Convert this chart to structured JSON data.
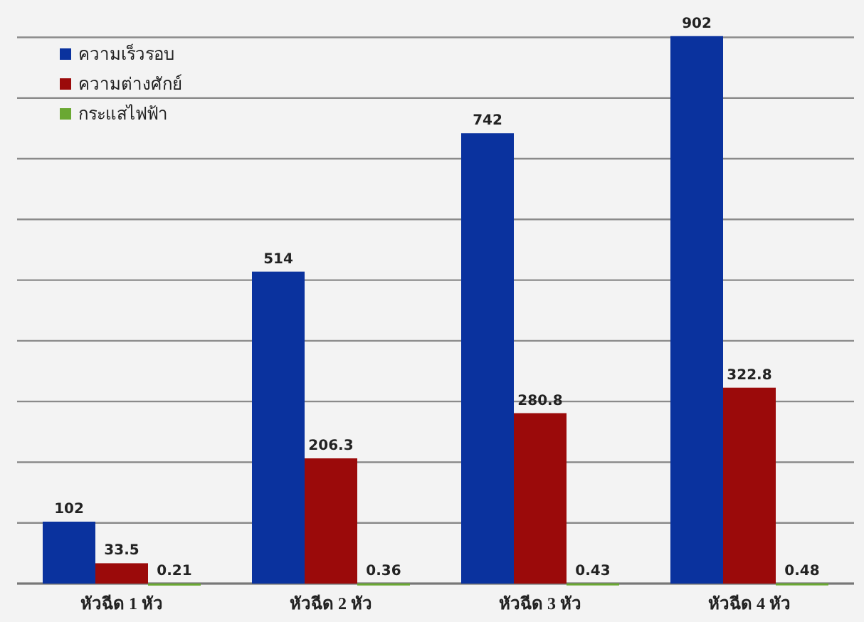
{
  "chart_data": {
    "type": "bar",
    "categories": [
      "หัวฉีด 1 หัว",
      "หัวฉีด 2 หัว",
      "หัวฉีด 3 หัว",
      "หัวฉีด 4 หัว"
    ],
    "series": [
      {
        "name": "ความเร็วรอบ",
        "color": "#0a329e",
        "values": [
          102,
          514,
          742,
          902
        ]
      },
      {
        "name": "ความต่างศักย์",
        "color": "#9b0a0a",
        "values": [
          33.5,
          206.3,
          280.8,
          322.8
        ]
      },
      {
        "name": "กระแสไฟฟ้า",
        "color": "#6aa832",
        "values": [
          0.21,
          0.36,
          0.43,
          0.48
        ]
      }
    ],
    "yticks": [
      {
        "value": 0,
        "label": null
      },
      {
        "value": 100,
        "label": null
      },
      {
        "value": 200,
        "label": null
      },
      {
        "value": 300,
        "label": null
      },
      {
        "value": 400,
        "label": null
      },
      {
        "value": 500,
        "label": null
      },
      {
        "value": 600,
        "label": null
      },
      {
        "value": 700,
        "label": null
      },
      {
        "value": 800,
        "label": null
      },
      {
        "value": 900,
        "label": null
      }
    ],
    "grid": "y",
    "legend": "top left",
    "data_labels": true
  }
}
